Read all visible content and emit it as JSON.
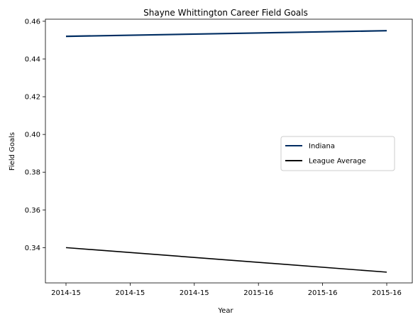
{
  "chart_data": {
    "type": "line",
    "title": "Shayne Whittington Career Field Goals",
    "xlabel": "Year",
    "ylabel": "Field Goals",
    "x_ticks": [
      "2014-15",
      "2014-15",
      "2014-15",
      "2015-16",
      "2015-16",
      "2015-16"
    ],
    "x_range": [
      0,
      1
    ],
    "ylim": [
      0.3213,
      0.4611
    ],
    "y_ticks": [
      "0.34",
      "0.36",
      "0.38",
      "0.40",
      "0.42",
      "0.44",
      "0.46"
    ],
    "y_tick_values": [
      0.34,
      0.36,
      0.38,
      0.4,
      0.42,
      0.44,
      0.46
    ],
    "grid": false,
    "legend_position": "center-right",
    "series": [
      {
        "name": "Indiana",
        "color": "#002D62",
        "x": [
          0,
          1
        ],
        "values": [
          0.452,
          0.455
        ]
      },
      {
        "name": "League Average",
        "color": "#000000",
        "x": [
          0,
          1
        ],
        "values": [
          0.34,
          0.327
        ]
      }
    ]
  }
}
